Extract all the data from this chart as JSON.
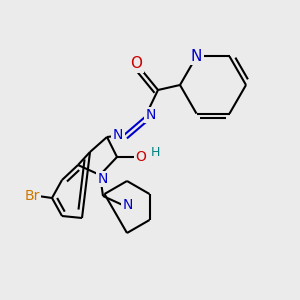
{
  "bg_color": "#ebebeb",
  "atom_colors": {
    "C": "#000000",
    "N": "#0000cc",
    "O": "#cc0000",
    "Br": "#cc7700",
    "H": "#008080"
  },
  "bond_color": "#000000",
  "bond_width": 1.5,
  "font_size": 10
}
